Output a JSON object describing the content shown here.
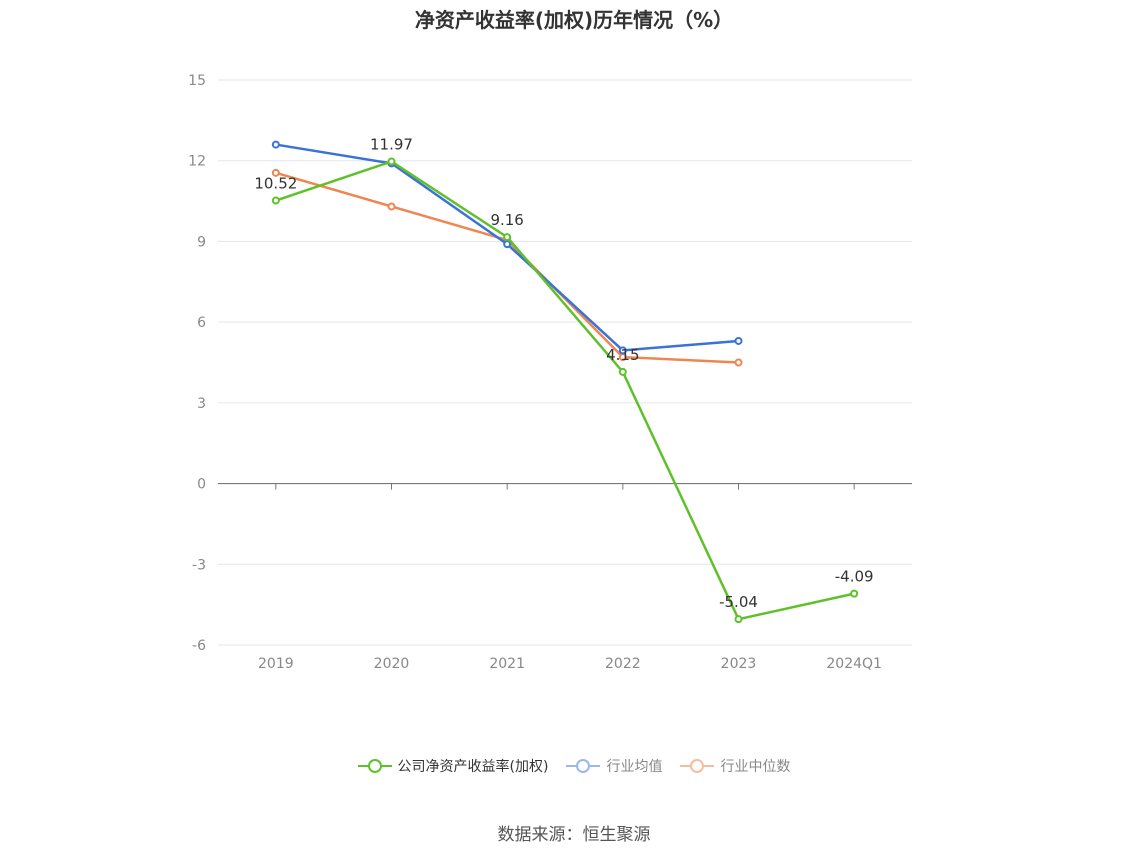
{
  "title": "净资产收益率(加权)历年情况（%）",
  "source": "数据来源：恒生聚源",
  "chart_data": {
    "type": "line",
    "title": "净资产收益率(加权)历年情况（%）",
    "categories": [
      "2019",
      "2020",
      "2021",
      "2022",
      "2023",
      "2024Q1"
    ],
    "ylim": [
      -6,
      15
    ],
    "yticks": [
      15,
      12,
      9,
      6,
      3,
      0,
      -3,
      -6
    ],
    "grid": true,
    "legend_position": "bottom",
    "series": [
      {
        "name": "公司净资产收益率(加权)",
        "color": "#5ec12a",
        "values": [
          10.52,
          11.97,
          9.16,
          4.15,
          -5.04,
          -4.09
        ],
        "labels": [
          "10.52",
          "11.97",
          "9.16",
          "4.15",
          "-5.04",
          "-4.09"
        ]
      },
      {
        "name": "行业均值",
        "color": "#3a72d6",
        "values": [
          12.6,
          11.9,
          8.9,
          4.95,
          5.3,
          null
        ]
      },
      {
        "name": "行业中位数",
        "color": "#ef8651",
        "values": [
          11.55,
          10.3,
          9.05,
          4.7,
          4.5,
          null
        ]
      }
    ]
  }
}
